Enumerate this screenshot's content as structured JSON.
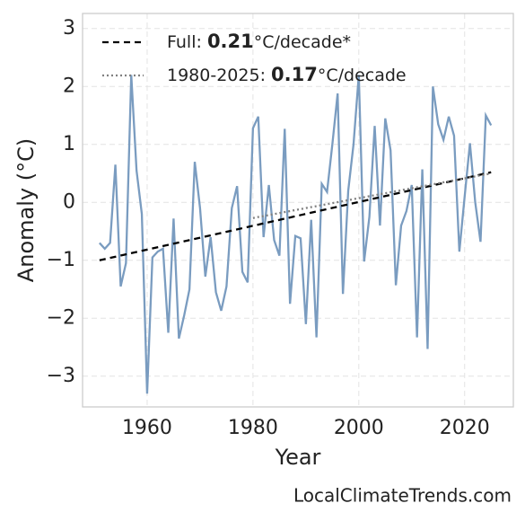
{
  "chart_data": {
    "type": "line",
    "x_label": "Year",
    "y_label": "Anomaly (°C)",
    "source": "LocalClimateTrends.com",
    "x": [
      1951,
      1952,
      1953,
      1954,
      1955,
      1956,
      1957,
      1958,
      1959,
      1960,
      1961,
      1962,
      1963,
      1964,
      1965,
      1966,
      1967,
      1968,
      1969,
      1970,
      1971,
      1972,
      1973,
      1974,
      1975,
      1976,
      1977,
      1978,
      1979,
      1980,
      1981,
      1982,
      1983,
      1984,
      1985,
      1986,
      1987,
      1988,
      1989,
      1990,
      1991,
      1992,
      1993,
      1994,
      1995,
      1996,
      1997,
      1998,
      1999,
      2000,
      2001,
      2002,
      2003,
      2004,
      2005,
      2006,
      2007,
      2008,
      2009,
      2010,
      2011,
      2012,
      2013,
      2014,
      2015,
      2016,
      2017,
      2018,
      2019,
      2020,
      2021,
      2022,
      2023,
      2024,
      2025
    ],
    "series": [
      {
        "color": "#7a9cc0",
        "values": [
          -0.7,
          -0.8,
          -0.7,
          0.65,
          -1.45,
          -1.05,
          2.2,
          0.55,
          -0.2,
          -3.3,
          -0.95,
          -0.85,
          -0.8,
          -2.25,
          -0.28,
          -2.35,
          -1.95,
          -1.5,
          0.7,
          -0.1,
          -1.28,
          -0.6,
          -1.55,
          -1.87,
          -1.45,
          -0.1,
          0.28,
          -1.2,
          -1.38,
          1.28,
          1.48,
          -0.6,
          0.3,
          -0.65,
          -0.92,
          1.27,
          -1.75,
          -0.58,
          -0.62,
          -2.1,
          -0.3,
          -2.33,
          0.32,
          0.18,
          1.0,
          1.88,
          -1.58,
          0.2,
          1.0,
          2.2,
          -1.02,
          -0.25,
          1.32,
          -0.4,
          1.45,
          0.9,
          -1.43,
          -0.4,
          -0.15,
          0.3,
          -2.33,
          0.57,
          -2.53,
          2.0,
          1.35,
          1.08,
          1.48,
          1.15,
          -0.85,
          0.1,
          1.02,
          0.0,
          -0.68,
          1.5,
          1.33
        ]
      }
    ],
    "trends": [
      {
        "prefix": "Full: ",
        "rate": 0.21,
        "suffix": "°C/decade*",
        "color": "#000000",
        "dash": "7,5",
        "x": [
          1951,
          2025
        ],
        "values": [
          -1.0,
          0.52
        ]
      },
      {
        "prefix": "1980-2025: ",
        "rate": 0.17,
        "suffix": "°C/decade",
        "color": "#808080",
        "dash": "2,3",
        "x": [
          1980,
          2025
        ],
        "values": [
          -0.27,
          0.5
        ]
      }
    ],
    "xlim": [
      1947.8,
      2029.2
    ],
    "ylim": [
      -3.53,
      3.26
    ],
    "xticks": [
      1960,
      1980,
      2000,
      2020
    ],
    "yticks": [
      {
        "value": -3,
        "label": "−3"
      },
      {
        "value": -2,
        "label": "−2"
      },
      {
        "value": -1,
        "label": "−1"
      },
      0,
      1,
      2,
      3
    ],
    "grid": true
  }
}
